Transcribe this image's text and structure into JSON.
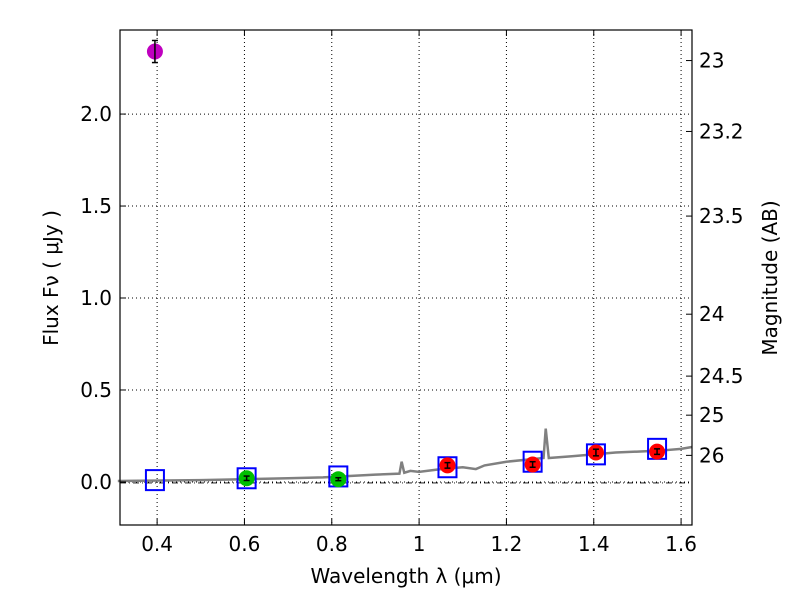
{
  "chart_data": {
    "type": "scatter",
    "xlabel": "Wavelength  λ (μm)",
    "ylabel": "Flux  Fν  ( μJy )",
    "ylabel_right": "Magnitude (AB)",
    "xlim": [
      0.315,
      1.625
    ],
    "ylim": [
      -0.234,
      2.457
    ],
    "xticks": [
      {
        "v": 0.4,
        "l": "0.4"
      },
      {
        "v": 0.6,
        "l": "0.6"
      },
      {
        "v": 0.8,
        "l": "0.8"
      },
      {
        "v": 1.0,
        "l": "1"
      },
      {
        "v": 1.2,
        "l": "1.2"
      },
      {
        "v": 1.4,
        "l": "1.4"
      },
      {
        "v": 1.6,
        "l": "1.6"
      }
    ],
    "yticks": [
      {
        "v": 0,
        "l": "0.0"
      },
      {
        "v": 0.5,
        "l": "0.5"
      },
      {
        "v": 1.0,
        "l": "1.0"
      },
      {
        "v": 1.5,
        "l": "1.5"
      },
      {
        "v": 2.0,
        "l": "2.0"
      }
    ],
    "mag_ticks": [
      {
        "v": 23,
        "l": "23"
      },
      {
        "v": 23.2,
        "l": "23.2"
      },
      {
        "v": 23.5,
        "l": "23.5"
      },
      {
        "v": 24,
        "l": "24"
      },
      {
        "v": 24.5,
        "l": "24.5"
      },
      {
        "v": 25,
        "l": "25"
      },
      {
        "v": 26,
        "l": "26"
      }
    ],
    "grid": true,
    "colors": {
      "spectrum": "#808080",
      "model": "#0000ff",
      "uv": "#bf00bf",
      "optical": "#00bf00",
      "ir": "#ff0000"
    },
    "spectrum": [
      [
        0.31,
        0.005
      ],
      [
        0.5,
        0.01
      ],
      [
        0.7,
        0.02
      ],
      [
        0.78,
        0.025
      ],
      [
        0.9,
        0.04
      ],
      [
        0.955,
        0.045
      ],
      [
        0.96,
        0.11
      ],
      [
        0.966,
        0.05
      ],
      [
        0.98,
        0.06
      ],
      [
        1.0,
        0.055
      ],
      [
        1.05,
        0.07
      ],
      [
        1.1,
        0.08
      ],
      [
        1.13,
        0.07
      ],
      [
        1.15,
        0.09
      ],
      [
        1.2,
        0.11
      ],
      [
        1.285,
        0.13
      ],
      [
        1.29,
        0.29
      ],
      [
        1.297,
        0.13
      ],
      [
        1.35,
        0.14
      ],
      [
        1.45,
        0.16
      ],
      [
        1.55,
        0.17
      ],
      [
        1.6,
        0.18
      ],
      [
        1.625,
        0.19
      ]
    ],
    "model_points": [
      [
        0.395,
        0.01
      ],
      [
        0.605,
        0.02
      ],
      [
        0.815,
        0.03
      ],
      [
        1.065,
        0.08
      ],
      [
        1.26,
        0.11
      ],
      [
        1.405,
        0.15
      ],
      [
        1.545,
        0.18
      ]
    ],
    "observed": [
      {
        "x": 0.395,
        "y": 2.34,
        "err": 0.06,
        "group": "uv"
      },
      {
        "x": 0.605,
        "y": 0.02,
        "err": 0.012,
        "group": "optical"
      },
      {
        "x": 0.815,
        "y": 0.015,
        "err": 0.008,
        "group": "optical"
      },
      {
        "x": 1.065,
        "y": 0.09,
        "err": 0.015,
        "group": "ir"
      },
      {
        "x": 1.26,
        "y": 0.095,
        "err": 0.015,
        "group": "ir"
      },
      {
        "x": 1.405,
        "y": 0.16,
        "err": 0.018,
        "group": "ir"
      },
      {
        "x": 1.545,
        "y": 0.165,
        "err": 0.015,
        "group": "ir"
      }
    ]
  }
}
